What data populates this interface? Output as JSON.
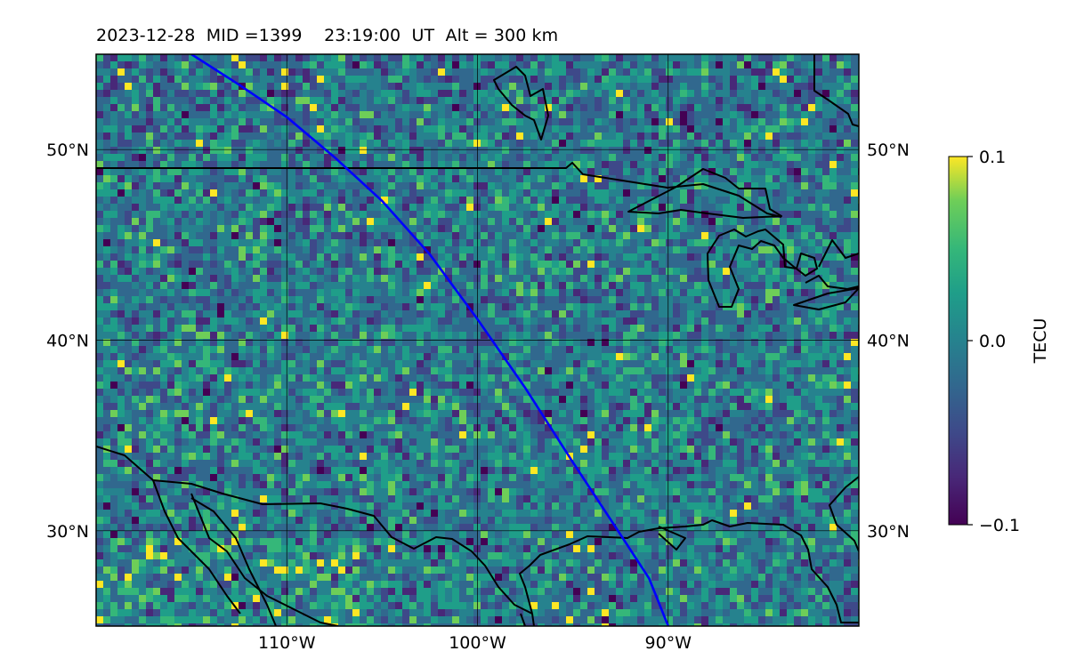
{
  "title": "2023-12-28  MID =1399    23:19:00  UT  Alt = 300 km",
  "map": {
    "lon_range": [
      -120,
      -80
    ],
    "lat_range": [
      25,
      55
    ],
    "lat_ticks": [
      {
        "value": 30,
        "label": "30°N"
      },
      {
        "value": 40,
        "label": "40°N"
      },
      {
        "value": 50,
        "label": "50°N"
      }
    ],
    "lon_ticks": [
      {
        "value": -110,
        "label": "110°W"
      },
      {
        "value": -100,
        "label": "100°W"
      },
      {
        "value": -90,
        "label": "90°W"
      }
    ],
    "grid": true,
    "colormap": "viridis",
    "track_color": "#0000ff",
    "coastline_color": "#000000",
    "track": [
      [
        -115.0,
        55.0
      ],
      [
        -112.5,
        53.4
      ],
      [
        -110.0,
        51.7
      ],
      [
        -107.5,
        49.6
      ],
      [
        -105.0,
        47.3
      ],
      [
        -102.5,
        44.5
      ],
      [
        -100.0,
        41.1
      ],
      [
        -97.5,
        37.5
      ],
      [
        -95.0,
        33.6
      ],
      [
        -92.5,
        29.8
      ],
      [
        -91.0,
        27.5
      ],
      [
        -90.0,
        25.0
      ]
    ]
  },
  "colorbar": {
    "label": "TECU",
    "ticks": [
      {
        "value": 0.1,
        "label": "0.1"
      },
      {
        "value": 0.0,
        "label": "0.0"
      },
      {
        "value": -0.1,
        "label": "−0.1"
      }
    ],
    "vmin": -0.1,
    "vmax": 0.1
  }
}
